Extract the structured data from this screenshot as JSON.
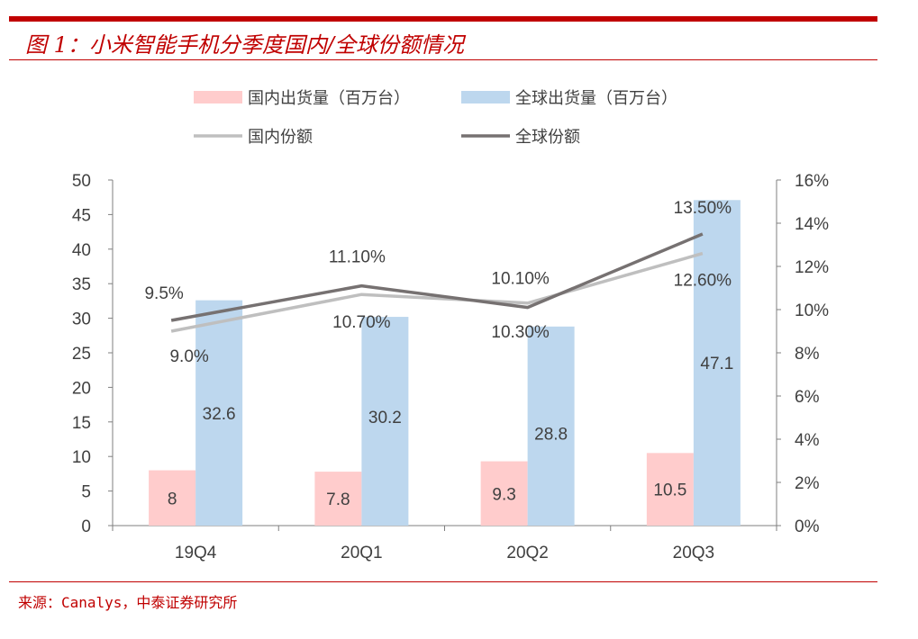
{
  "header": {
    "title": "图 1：小米智能手机分季度国内/全球份额情况"
  },
  "footer": {
    "source": "来源：Canalys，中泰证券研究所"
  },
  "chart_data": {
    "type": "bar",
    "title": "",
    "categories": [
      "19Q4",
      "20Q1",
      "20Q2",
      "20Q3"
    ],
    "series": [
      {
        "name": "国内出货量（百万台）",
        "kind": "bar",
        "axis": "left",
        "color": "#ffcccc",
        "values": [
          8,
          7.8,
          9.3,
          10.5
        ],
        "labels": [
          "8",
          "7.8",
          "9.3",
          "10.5"
        ]
      },
      {
        "name": "全球出货量（百万台）",
        "kind": "bar",
        "axis": "left",
        "color": "#bdd7ee",
        "values": [
          32.6,
          30.2,
          28.8,
          47.1
        ],
        "labels": [
          "32.6",
          "30.2",
          "28.8",
          "47.1"
        ]
      },
      {
        "name": "国内份额",
        "kind": "line",
        "axis": "right",
        "color": "#bfbfbf",
        "values": [
          9.0,
          10.7,
          10.3,
          12.6
        ],
        "labels": [
          "9.0%",
          "10.70%",
          "10.30%",
          "12.60%"
        ]
      },
      {
        "name": "全球份额",
        "kind": "line",
        "axis": "right",
        "color": "#767171",
        "values": [
          9.5,
          11.1,
          10.1,
          13.5
        ],
        "labels": [
          "9.5%",
          "11.10%",
          "10.10%",
          "13.50%"
        ]
      }
    ],
    "y_left": {
      "min": 0,
      "max": 50,
      "ticks": [
        "0",
        "5",
        "10",
        "15",
        "20",
        "25",
        "30",
        "35",
        "40",
        "45",
        "50"
      ]
    },
    "y_right": {
      "min": 0,
      "max": 16,
      "ticks": [
        "0%",
        "2%",
        "4%",
        "6%",
        "8%",
        "10%",
        "12%",
        "14%",
        "16%"
      ]
    },
    "legend_position": "top",
    "grid": false
  }
}
